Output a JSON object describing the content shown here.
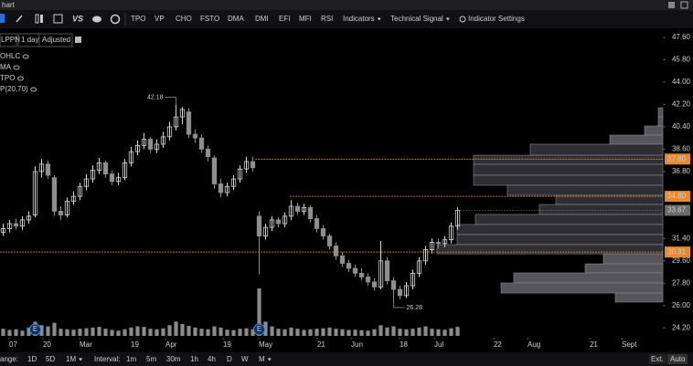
{
  "window_title": "hart",
  "toolbar": {
    "items": [
      "TPO",
      "VP",
      "CHO",
      "FSTO",
      "DMA",
      "DMI",
      "EFI",
      "MFI",
      "RSI",
      "Indicators",
      "Technical Signal",
      "Indicator Settings"
    ]
  },
  "symbol_bar": {
    "symbol": "LPPN",
    "period": "1 day",
    "mode": "Adjusted"
  },
  "studies": [
    "OHLC",
    "MA",
    "TPO",
    "P(20,70)"
  ],
  "chart_data": {
    "type": "candlestick",
    "up_color": "#d6d6d6",
    "down_color": "#8e8e8e",
    "candles": [
      [
        31.9,
        32.6,
        31.6,
        32.2
      ],
      [
        32.2,
        32.9,
        31.9,
        32.6
      ],
      [
        32.6,
        33.0,
        32.1,
        32.4
      ],
      [
        32.4,
        33.2,
        32.1,
        32.9
      ],
      [
        32.9,
        33.6,
        32.6,
        33.2
      ],
      [
        33.3,
        37.2,
        33.1,
        36.8
      ],
      [
        36.8,
        37.8,
        36.3,
        37.4
      ],
      [
        37.4,
        37.7,
        36.2,
        36.5
      ],
      [
        36.3,
        36.5,
        33.2,
        33.6
      ],
      [
        33.6,
        34.0,
        32.9,
        33.3
      ],
      [
        33.3,
        34.7,
        33.1,
        34.4
      ],
      [
        34.4,
        35.2,
        34.1,
        34.8
      ],
      [
        34.8,
        35.9,
        34.5,
        35.6
      ],
      [
        35.6,
        36.6,
        35.3,
        36.2
      ],
      [
        36.2,
        37.3,
        35.9,
        36.9
      ],
      [
        36.9,
        37.9,
        36.6,
        37.5
      ],
      [
        37.5,
        37.7,
        36.3,
        36.6
      ],
      [
        36.6,
        36.9,
        35.7,
        36.0
      ],
      [
        36.0,
        36.7,
        35.7,
        36.3
      ],
      [
        36.3,
        37.8,
        36.1,
        37.5
      ],
      [
        37.5,
        38.8,
        37.2,
        38.4
      ],
      [
        38.4,
        39.3,
        38.1,
        38.9
      ],
      [
        38.9,
        39.9,
        38.6,
        39.4
      ],
      [
        39.4,
        39.6,
        38.3,
        38.6
      ],
      [
        38.6,
        39.4,
        38.3,
        39.0
      ],
      [
        39.0,
        40.0,
        38.7,
        39.6
      ],
      [
        39.6,
        40.8,
        39.3,
        40.4
      ],
      [
        40.4,
        42.18,
        40.1,
        41.2
      ],
      [
        41.2,
        42.0,
        40.6,
        41.8
      ],
      [
        41.6,
        41.9,
        39.5,
        39.8
      ],
      [
        39.8,
        40.2,
        39.1,
        39.5
      ],
      [
        39.5,
        39.8,
        38.3,
        38.6
      ],
      [
        38.6,
        38.9,
        37.6,
        38.0
      ],
      [
        37.9,
        38.1,
        35.4,
        35.8
      ],
      [
        35.8,
        36.2,
        34.7,
        35.1
      ],
      [
        35.1,
        35.9,
        34.8,
        35.6
      ],
      [
        35.6,
        36.5,
        35.3,
        36.2
      ],
      [
        36.2,
        37.3,
        35.9,
        37.0
      ],
      [
        37.0,
        38.0,
        36.7,
        37.6
      ],
      [
        37.6,
        38.0,
        36.8,
        37.1
      ],
      [
        33.2,
        33.6,
        28.5,
        31.6
      ],
      [
        31.6,
        32.6,
        31.3,
        32.3
      ],
      [
        32.3,
        33.2,
        32.0,
        32.9
      ],
      [
        32.9,
        33.1,
        32.3,
        32.6
      ],
      [
        32.6,
        33.5,
        32.3,
        33.2
      ],
      [
        33.2,
        34.5,
        32.9,
        34.0
      ],
      [
        34.0,
        34.3,
        33.3,
        33.6
      ],
      [
        33.6,
        34.2,
        33.3,
        33.9
      ],
      [
        33.9,
        34.1,
        32.7,
        33.0
      ],
      [
        33.0,
        33.3,
        31.9,
        32.2
      ],
      [
        32.2,
        32.5,
        31.3,
        31.6
      ],
      [
        31.6,
        31.8,
        30.5,
        30.8
      ],
      [
        30.8,
        31.1,
        29.7,
        30.0
      ],
      [
        30.0,
        30.3,
        29.1,
        29.4
      ],
      [
        29.4,
        29.7,
        28.7,
        29.0
      ],
      [
        29.0,
        29.3,
        28.3,
        28.6
      ],
      [
        28.6,
        29.0,
        28.0,
        28.3
      ],
      [
        28.3,
        28.6,
        27.6,
        27.9
      ],
      [
        27.9,
        28.2,
        27.2,
        27.5
      ],
      [
        27.5,
        31.2,
        27.3,
        29.6
      ],
      [
        29.6,
        29.9,
        27.7,
        28.0
      ],
      [
        28.0,
        28.3,
        26.28,
        27.3
      ],
      [
        27.3,
        27.6,
        26.5,
        26.8
      ],
      [
        26.8,
        27.9,
        26.6,
        27.6
      ],
      [
        27.6,
        28.9,
        27.3,
        28.6
      ],
      [
        28.6,
        29.9,
        28.3,
        29.6
      ],
      [
        29.6,
        30.8,
        29.3,
        30.5
      ],
      [
        30.5,
        31.4,
        30.2,
        31.1
      ],
      [
        31.1,
        31.4,
        30.6,
        31.0
      ],
      [
        31.0,
        31.6,
        30.7,
        31.3
      ],
      [
        31.3,
        32.7,
        31.0,
        32.4
      ],
      [
        32.4,
        33.9,
        32.1,
        33.67
      ]
    ],
    "volumes": [
      30,
      25,
      28,
      22,
      35,
      60,
      45,
      40,
      55,
      30,
      28,
      26,
      30,
      32,
      35,
      38,
      30,
      25,
      22,
      28,
      35,
      40,
      38,
      30,
      28,
      32,
      45,
      60,
      50,
      42,
      35,
      30,
      28,
      40,
      35,
      26,
      24,
      30,
      32,
      28,
      200,
      60,
      40,
      30,
      28,
      35,
      30,
      25,
      28,
      30,
      32,
      35,
      30,
      28,
      25,
      26,
      24,
      22,
      28,
      45,
      35,
      40,
      30,
      28,
      30,
      35,
      40,
      30,
      28,
      26,
      32,
      38
    ],
    "volume_color": "#8a8a8a",
    "events": [
      {
        "index": 5,
        "label": "E"
      },
      {
        "index": 40,
        "label": "E"
      }
    ],
    "xlim": [
      -0.5,
      103.07
    ],
    "xticks": [
      {
        "value": 0.93,
        "label": "07"
      },
      {
        "value": 6.21,
        "label": "20"
      },
      {
        "value": 11.93,
        "label": "Mar"
      },
      {
        "value": 19.93,
        "label": "19"
      },
      {
        "value": 25.36,
        "label": "Apr"
      },
      {
        "value": 34.36,
        "label": "19"
      },
      {
        "value": 39.93,
        "label": "May"
      },
      {
        "value": 49.07,
        "label": "21"
      },
      {
        "value": 54.36,
        "label": "Jun"
      },
      {
        "value": 61.93,
        "label": "18"
      },
      {
        "value": 67.36,
        "label": "Jul"
      },
      {
        "value": 76.64,
        "label": "22"
      },
      {
        "value": 81.93,
        "label": "Aug"
      },
      {
        "value": 91.64,
        "label": "21"
      },
      {
        "value": 96.64,
        "label": "Sept"
      }
    ],
    "ylim": [
      23.41,
      48.19
    ],
    "yticks": [
      {
        "value": 24.2,
        "label": "24.20"
      },
      {
        "value": 26,
        "label": "26.00"
      },
      {
        "value": 27.8,
        "label": "27.80"
      },
      {
        "value": 29.6,
        "label": "29.60"
      },
      {
        "value": 31.4,
        "label": "31.40"
      },
      {
        "value": 36.8,
        "label": "36.80"
      },
      {
        "value": 38.6,
        "label": "38.60"
      },
      {
        "value": 40.4,
        "label": "40.40"
      },
      {
        "value": 42.2,
        "label": "42.20"
      },
      {
        "value": 44,
        "label": "44.00"
      },
      {
        "value": 45.8,
        "label": "45.80"
      },
      {
        "value": 47.6,
        "label": "47.60"
      }
    ],
    "price_lines": [
      {
        "value": 37.8,
        "label": "37.80",
        "start": 39.4
      },
      {
        "value": 34.8,
        "label": "34.80",
        "start": 44.8
      },
      {
        "value": 30.31,
        "start": -0.5
      }
    ],
    "price_line_color": "#e8892e",
    "volume_profile": {
      "bins": [
        41.94,
        41.2,
        40.47,
        39.73,
        39.0,
        38.11,
        37.38,
        36.5,
        35.69,
        34.88,
        34.14,
        33.34,
        32.53,
        31.72,
        30.91,
        30.17,
        29.36,
        28.63,
        27.82,
        27.01,
        26.28
      ],
      "values": [
        5,
        5,
        20,
        58,
        145,
        207,
        207,
        207,
        170,
        117,
        135,
        205,
        225,
        225,
        247,
        65,
        85,
        163,
        177,
        52
      ]
    }
  },
  "footer": {
    "range_label": "ange:",
    "ranges": [
      "1D",
      "5D",
      "1M"
    ],
    "interval_label": "Interval:",
    "intervals": [
      "1m",
      "5m",
      "30m",
      "1h",
      "4h",
      "D",
      "W",
      "M"
    ],
    "right": [
      "Ext.",
      "Auto"
    ]
  }
}
